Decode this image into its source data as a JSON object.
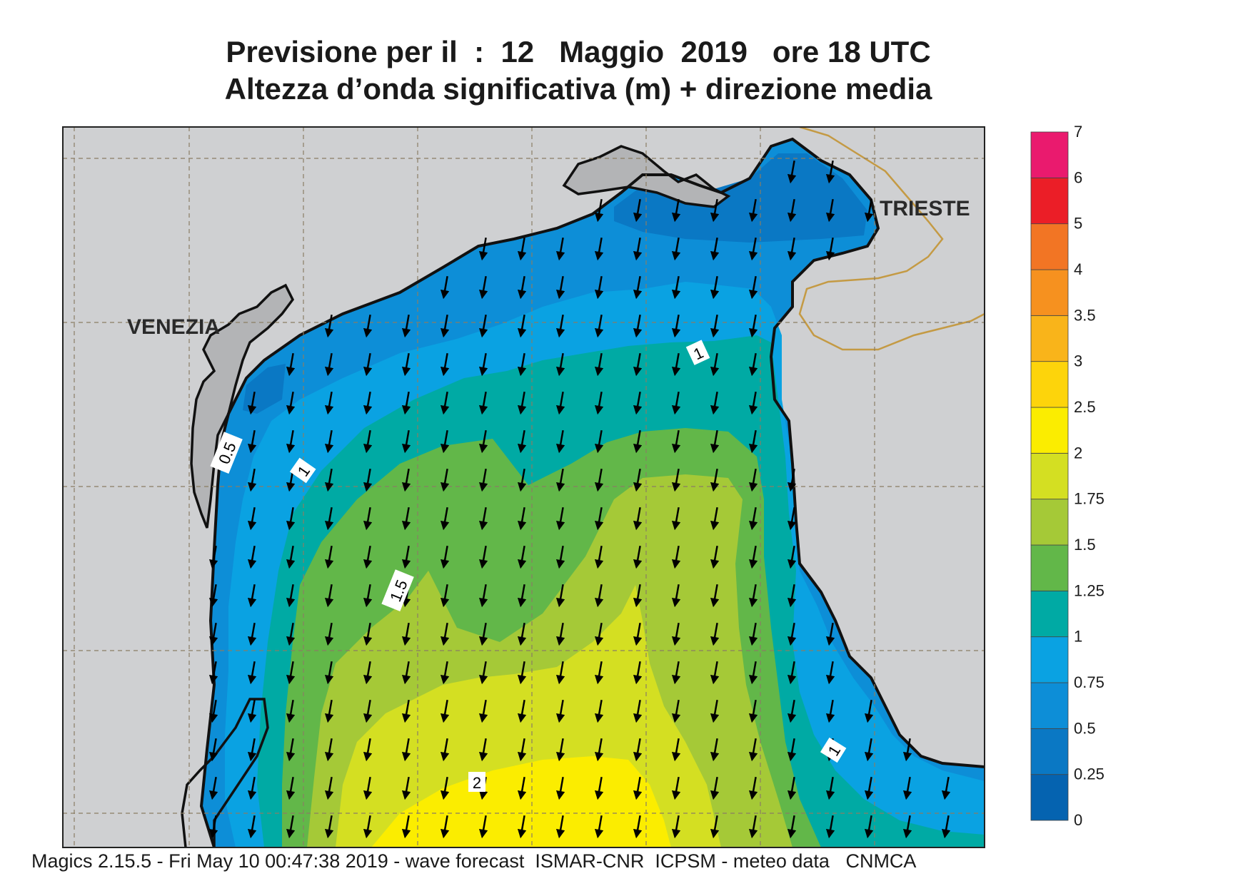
{
  "title": {
    "line1": "Previsione per il  :  12   Maggio  2019   ore 18 UTC",
    "line2": "Altezza d’onda significativa (m) + direzione media"
  },
  "cities": {
    "venezia": "VENEZIA",
    "trieste": "TRIESTE"
  },
  "colorbar": {
    "labels": [
      "0",
      "0.25",
      "0.5",
      "0.75",
      "1",
      "1.25",
      "1.5",
      "1.75",
      "2",
      "2.5",
      "3",
      "3.5",
      "4",
      "5",
      "6",
      "7"
    ],
    "colors": [
      "#0563b0",
      "#0a78c4",
      "#0d8ed7",
      "#0aa2e2",
      "#00aaa4",
      "#62b749",
      "#a5c937",
      "#d4df22",
      "#fbed00",
      "#fdd40b",
      "#f9b41a",
      "#f6911f",
      "#f27524",
      "#eb1e27",
      "#ea1a6e"
    ]
  },
  "contour_labels": {
    "c05": "0.5",
    "c1a": "1",
    "c1b": "1",
    "c15": "1.5",
    "c1c": "1",
    "c2": "2"
  },
  "colors": {
    "land": "#cfd0d2",
    "coast": "#111111",
    "border": "#c49a44",
    "grid": "#8a7d64"
  },
  "footer": "Magics 2.15.5 - Fri May 10 00:47:38 2019 - wave forecast  ISMAR-CNR  ICPSM - meteo data   CNMCA"
}
